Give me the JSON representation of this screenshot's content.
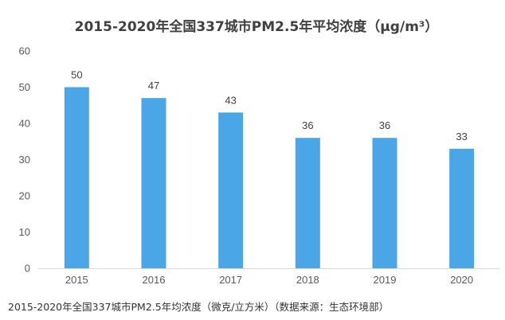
{
  "chart_data": {
    "type": "bar",
    "title": "2015-2020年全国337城市PM2.5年平均浓度（μg/m³）",
    "categories": [
      "2015",
      "2016",
      "2017",
      "2018",
      "2019",
      "2020"
    ],
    "values": [
      50,
      47,
      43,
      36,
      36,
      33
    ],
    "ylim": [
      0,
      60
    ],
    "yticks": [
      "0",
      "10",
      "20",
      "30",
      "40",
      "50",
      "60"
    ],
    "xlabel": "",
    "ylabel": "",
    "grid": false,
    "data_labels": true,
    "bar_color": "#4BA6E8"
  },
  "caption": "2015-2020年全国337城市PM2.5年均浓度（微克/立方米）（数据来源：生态环境部）"
}
